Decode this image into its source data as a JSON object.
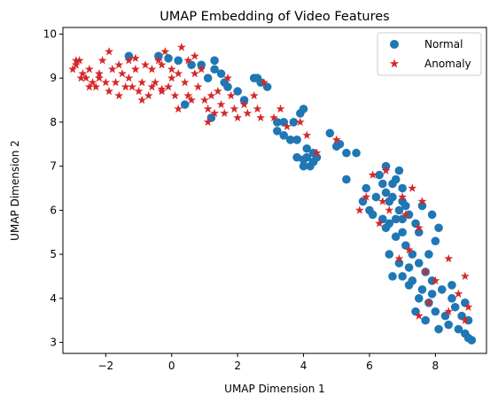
{
  "chart_data": {
    "type": "scatter",
    "title": "UMAP Embedding of Video Features",
    "xlabel": "UMAP Dimension 1",
    "ylabel": "UMAP Dimension 2",
    "xlim": [
      -3.3,
      9.55
    ],
    "ylim": [
      2.75,
      10.15
    ],
    "xticks": [
      -2,
      0,
      2,
      4,
      6,
      8
    ],
    "yticks": [
      3,
      4,
      5,
      6,
      7,
      8,
      9,
      10
    ],
    "grid": false,
    "legend_position": "top-right",
    "series": [
      {
        "name": "Normal",
        "marker": "circle",
        "color": "#1f77b4",
        "points": [
          [
            -1.3,
            9.5
          ],
          [
            -0.4,
            9.5
          ],
          [
            -0.1,
            9.45
          ],
          [
            0.2,
            9.4
          ],
          [
            0.6,
            9.3
          ],
          [
            0.9,
            9.3
          ],
          [
            1.3,
            9.4
          ],
          [
            1.3,
            9.2
          ],
          [
            1.5,
            9.1
          ],
          [
            1.1,
            9.0
          ],
          [
            1.6,
            8.9
          ],
          [
            1.7,
            8.8
          ],
          [
            2.0,
            8.7
          ],
          [
            2.2,
            8.5
          ],
          [
            2.5,
            9.0
          ],
          [
            2.6,
            9.0
          ],
          [
            2.7,
            8.9
          ],
          [
            2.9,
            8.8
          ],
          [
            0.4,
            8.4
          ],
          [
            1.2,
            8.1
          ],
          [
            3.2,
            8.0
          ],
          [
            3.4,
            8.0
          ],
          [
            3.7,
            8.0
          ],
          [
            3.9,
            8.2
          ],
          [
            4.0,
            8.3
          ],
          [
            3.2,
            7.8
          ],
          [
            3.4,
            7.7
          ],
          [
            3.6,
            7.6
          ],
          [
            3.8,
            7.6
          ],
          [
            4.1,
            7.4
          ],
          [
            4.3,
            7.3
          ],
          [
            4.1,
            7.2
          ],
          [
            4.4,
            7.2
          ],
          [
            4.0,
            7.15
          ],
          [
            3.8,
            7.2
          ],
          [
            4.0,
            7.0
          ],
          [
            4.2,
            7.0
          ],
          [
            4.3,
            7.1
          ],
          [
            4.8,
            7.75
          ],
          [
            5.0,
            7.45
          ],
          [
            5.1,
            7.5
          ],
          [
            5.3,
            7.3
          ],
          [
            5.6,
            7.3
          ],
          [
            5.3,
            6.7
          ],
          [
            5.8,
            6.2
          ],
          [
            5.9,
            6.5
          ],
          [
            6.0,
            6.0
          ],
          [
            6.1,
            5.9
          ],
          [
            6.2,
            6.3
          ],
          [
            6.3,
            6.8
          ],
          [
            6.4,
            6.6
          ],
          [
            6.5,
            7.0
          ],
          [
            6.5,
            6.4
          ],
          [
            6.6,
            6.2
          ],
          [
            6.7,
            6.6
          ],
          [
            6.8,
            6.7
          ],
          [
            6.9,
            6.9
          ],
          [
            7.0,
            6.5
          ],
          [
            7.0,
            6.2
          ],
          [
            7.1,
            6.1
          ],
          [
            6.7,
            6.3
          ],
          [
            6.9,
            6.0
          ],
          [
            6.4,
            5.8
          ],
          [
            6.6,
            5.7
          ],
          [
            6.8,
            5.8
          ],
          [
            7.0,
            5.8
          ],
          [
            7.2,
            5.9
          ],
          [
            7.4,
            5.7
          ],
          [
            7.5,
            5.5
          ],
          [
            7.0,
            5.5
          ],
          [
            6.5,
            5.6
          ],
          [
            6.8,
            5.4
          ],
          [
            7.1,
            5.2
          ],
          [
            7.3,
            5.0
          ],
          [
            6.6,
            5.0
          ],
          [
            6.9,
            4.8
          ],
          [
            7.2,
            4.7
          ],
          [
            7.5,
            4.8
          ],
          [
            7.7,
            4.6
          ],
          [
            7.8,
            5.0
          ],
          [
            8.0,
            5.3
          ],
          [
            8.1,
            5.6
          ],
          [
            7.9,
            5.9
          ],
          [
            7.6,
            6.1
          ],
          [
            6.7,
            4.5
          ],
          [
            7.0,
            4.5
          ],
          [
            7.3,
            4.4
          ],
          [
            7.6,
            4.2
          ],
          [
            7.9,
            4.4
          ],
          [
            8.2,
            4.2
          ],
          [
            8.5,
            4.0
          ],
          [
            7.2,
            4.3
          ],
          [
            7.5,
            4.0
          ],
          [
            7.8,
            3.9
          ],
          [
            8.0,
            3.7
          ],
          [
            8.3,
            3.6
          ],
          [
            8.6,
            3.8
          ],
          [
            8.8,
            3.6
          ],
          [
            8.4,
            3.4
          ],
          [
            8.7,
            3.3
          ],
          [
            8.9,
            3.2
          ],
          [
            9.0,
            3.1
          ],
          [
            9.1,
            3.05
          ],
          [
            7.7,
            3.5
          ],
          [
            8.1,
            3.3
          ],
          [
            8.9,
            3.9
          ],
          [
            9.0,
            3.5
          ],
          [
            8.5,
            4.3
          ],
          [
            7.4,
            3.7
          ],
          [
            7.9,
            4.1
          ]
        ]
      },
      {
        "name": "Anomaly",
        "marker": "star",
        "color": "#d62728",
        "points": [
          [
            -3.0,
            9.2
          ],
          [
            -2.9,
            9.3
          ],
          [
            -2.8,
            9.4
          ],
          [
            -2.7,
            9.1
          ],
          [
            -2.6,
            9.0
          ],
          [
            -2.5,
            9.2
          ],
          [
            -2.4,
            8.9
          ],
          [
            -2.3,
            8.8
          ],
          [
            -2.2,
            9.1
          ],
          [
            -2.1,
            9.4
          ],
          [
            -2.0,
            8.9
          ],
          [
            -1.9,
            8.7
          ],
          [
            -1.8,
            9.2
          ],
          [
            -1.7,
            8.9
          ],
          [
            -1.6,
            8.6
          ],
          [
            -1.5,
            9.1
          ],
          [
            -1.4,
            8.8
          ],
          [
            -1.3,
            9.4
          ],
          [
            -1.2,
            8.8
          ],
          [
            -1.1,
            9.2
          ],
          [
            -1.0,
            8.7
          ],
          [
            -0.9,
            8.9
          ],
          [
            -0.8,
            9.3
          ],
          [
            -0.7,
            8.6
          ],
          [
            -0.6,
            9.2
          ],
          [
            -0.5,
            8.9
          ],
          [
            -0.4,
            9.4
          ],
          [
            -0.3,
            8.7
          ],
          [
            -0.2,
            9.6
          ],
          [
            -0.1,
            8.8
          ],
          [
            0.0,
            9.2
          ],
          [
            0.1,
            8.6
          ],
          [
            0.2,
            9.1
          ],
          [
            0.3,
            9.7
          ],
          [
            0.4,
            8.9
          ],
          [
            0.5,
            9.4
          ],
          [
            0.6,
            8.5
          ],
          [
            0.7,
            9.5
          ],
          [
            0.8,
            8.8
          ],
          [
            0.9,
            9.2
          ],
          [
            1.0,
            8.5
          ],
          [
            1.1,
            8.3
          ],
          [
            1.2,
            8.6
          ],
          [
            1.3,
            8.2
          ],
          [
            1.4,
            8.7
          ],
          [
            1.5,
            8.4
          ],
          [
            1.6,
            8.2
          ],
          [
            1.8,
            8.6
          ],
          [
            1.9,
            8.3
          ],
          [
            2.0,
            8.1
          ],
          [
            2.2,
            8.4
          ],
          [
            2.3,
            8.2
          ],
          [
            2.5,
            8.6
          ],
          [
            2.7,
            8.1
          ],
          [
            2.8,
            8.9
          ],
          [
            -2.9,
            9.4
          ],
          [
            -2.5,
            8.8
          ],
          [
            -2.2,
            9.0
          ],
          [
            -1.9,
            9.6
          ],
          [
            -1.6,
            9.3
          ],
          [
            -1.3,
            9.0
          ],
          [
            -0.9,
            8.5
          ],
          [
            -0.6,
            8.8
          ],
          [
            -0.3,
            9.3
          ],
          [
            0.2,
            8.3
          ],
          [
            0.5,
            8.6
          ],
          [
            1.1,
            8.0
          ],
          [
            1.7,
            9.0
          ],
          [
            2.6,
            8.3
          ],
          [
            3.1,
            8.1
          ],
          [
            3.3,
            8.3
          ],
          [
            3.5,
            7.9
          ],
          [
            3.9,
            8.0
          ],
          [
            4.1,
            7.7
          ],
          [
            4.4,
            7.3
          ],
          [
            5.0,
            7.6
          ],
          [
            5.9,
            6.3
          ],
          [
            6.1,
            6.8
          ],
          [
            6.5,
            6.9
          ],
          [
            7.0,
            6.3
          ],
          [
            7.3,
            6.5
          ],
          [
            7.6,
            6.2
          ],
          [
            5.7,
            6.0
          ],
          [
            6.3,
            5.7
          ],
          [
            6.6,
            6.0
          ],
          [
            7.1,
            5.9
          ],
          [
            7.5,
            5.6
          ],
          [
            7.2,
            5.1
          ],
          [
            6.9,
            4.9
          ],
          [
            7.7,
            4.6
          ],
          [
            8.0,
            4.4
          ],
          [
            8.4,
            4.9
          ],
          [
            8.7,
            4.1
          ],
          [
            8.4,
            3.7
          ],
          [
            8.9,
            4.5
          ],
          [
            9.0,
            3.8
          ],
          [
            8.9,
            3.5
          ],
          [
            7.8,
            3.9
          ],
          [
            7.5,
            3.6
          ],
          [
            6.4,
            6.2
          ],
          [
            -0.3,
            8.75
          ],
          [
            0.0,
            9.0
          ],
          [
            -2.75,
            9.0
          ],
          [
            -1.1,
            9.45
          ],
          [
            0.7,
            9.1
          ]
        ]
      }
    ]
  }
}
